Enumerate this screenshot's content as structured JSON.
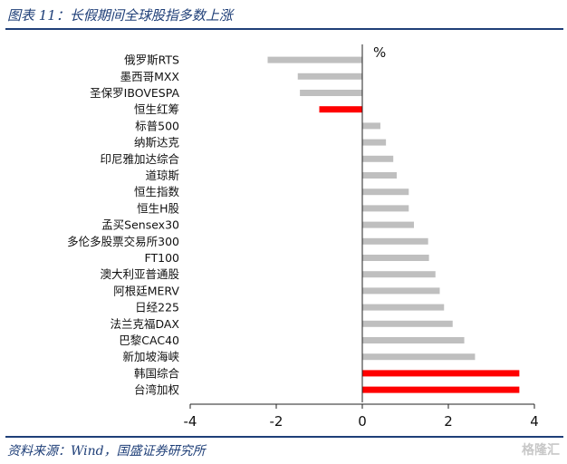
{
  "figure": {
    "title": "图表 11：长假期间全球股指多数上涨",
    "source": "资料来源：Wind，国盛证券研究所",
    "watermark": "格隆汇"
  },
  "colors": {
    "frame": "#1f3f78",
    "bar_default": "#bfbfbf",
    "bar_highlight": "#ff0000",
    "axis": "#222222"
  },
  "chart_data": {
    "type": "bar",
    "orientation": "horizontal",
    "unit": "%",
    "categories": [
      "俄罗斯RTS",
      "墨西哥MXX",
      "圣保罗IBOVESPA",
      "恒生红筹",
      "标普500",
      "纳斯达克",
      "印尼雅加达综合",
      "道琼斯",
      "恒生指数",
      "恒生H股",
      "孟买Sensex30",
      "多伦多股票交易所300",
      "FT100",
      "澳大利亚普通股",
      "阿根廷MERV",
      "日经225",
      "法兰克福DAX",
      "巴黎CAC40",
      "新加坡海峡",
      "韩国综合",
      "台湾加权"
    ],
    "values": [
      -2.2,
      -1.5,
      -1.45,
      -1.0,
      0.42,
      0.55,
      0.72,
      0.8,
      1.08,
      1.08,
      1.2,
      1.53,
      1.55,
      1.7,
      1.8,
      1.9,
      2.1,
      2.37,
      2.62,
      3.65,
      3.65
    ],
    "highlight": [
      false,
      false,
      false,
      true,
      false,
      false,
      false,
      false,
      false,
      false,
      false,
      false,
      false,
      false,
      false,
      false,
      false,
      false,
      false,
      true,
      true
    ],
    "xlim": [
      -4,
      4
    ],
    "xticks": [
      -4,
      -2,
      0,
      2,
      4
    ],
    "tick_labels": [
      "-4",
      "-2",
      "0",
      "2",
      "4"
    ],
    "grid": false,
    "legend": "none"
  }
}
